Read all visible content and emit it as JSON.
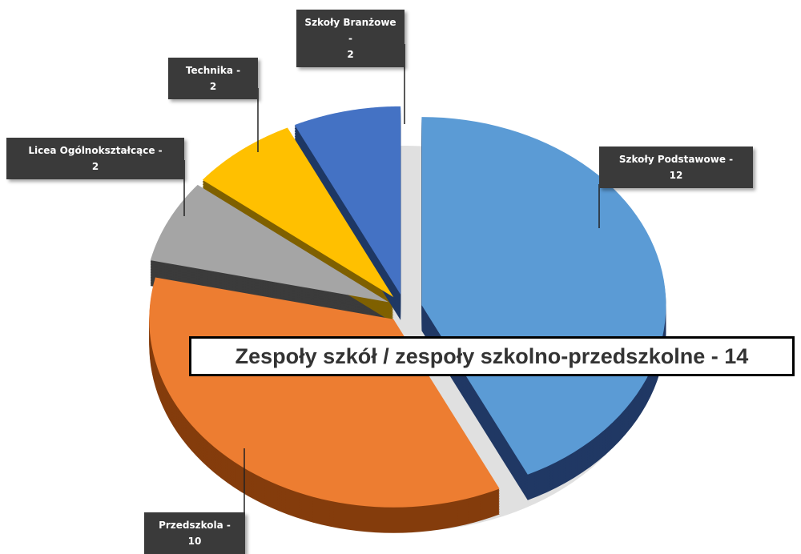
{
  "chart_data": {
    "type": "pie",
    "title": "Zespoły szkół / zespoły szkolno-przedszkolne - 14",
    "categories": [
      "Szkoły Podstawowe -",
      "Przedszkola -",
      "Licea Ogólnokształcące -",
      "Technika -",
      "Szkoły Branżowe -"
    ],
    "values": [
      12,
      10,
      2,
      2,
      2
    ],
    "colors": [
      "#5b9bd5",
      "#ed7d31",
      "#a5a5a5",
      "#ffc000",
      "#4472c4"
    ],
    "side_colors": [
      "#203864",
      "#843c0c",
      "#3b3b3b",
      "#7f6000",
      "#1f3864"
    ]
  }
}
